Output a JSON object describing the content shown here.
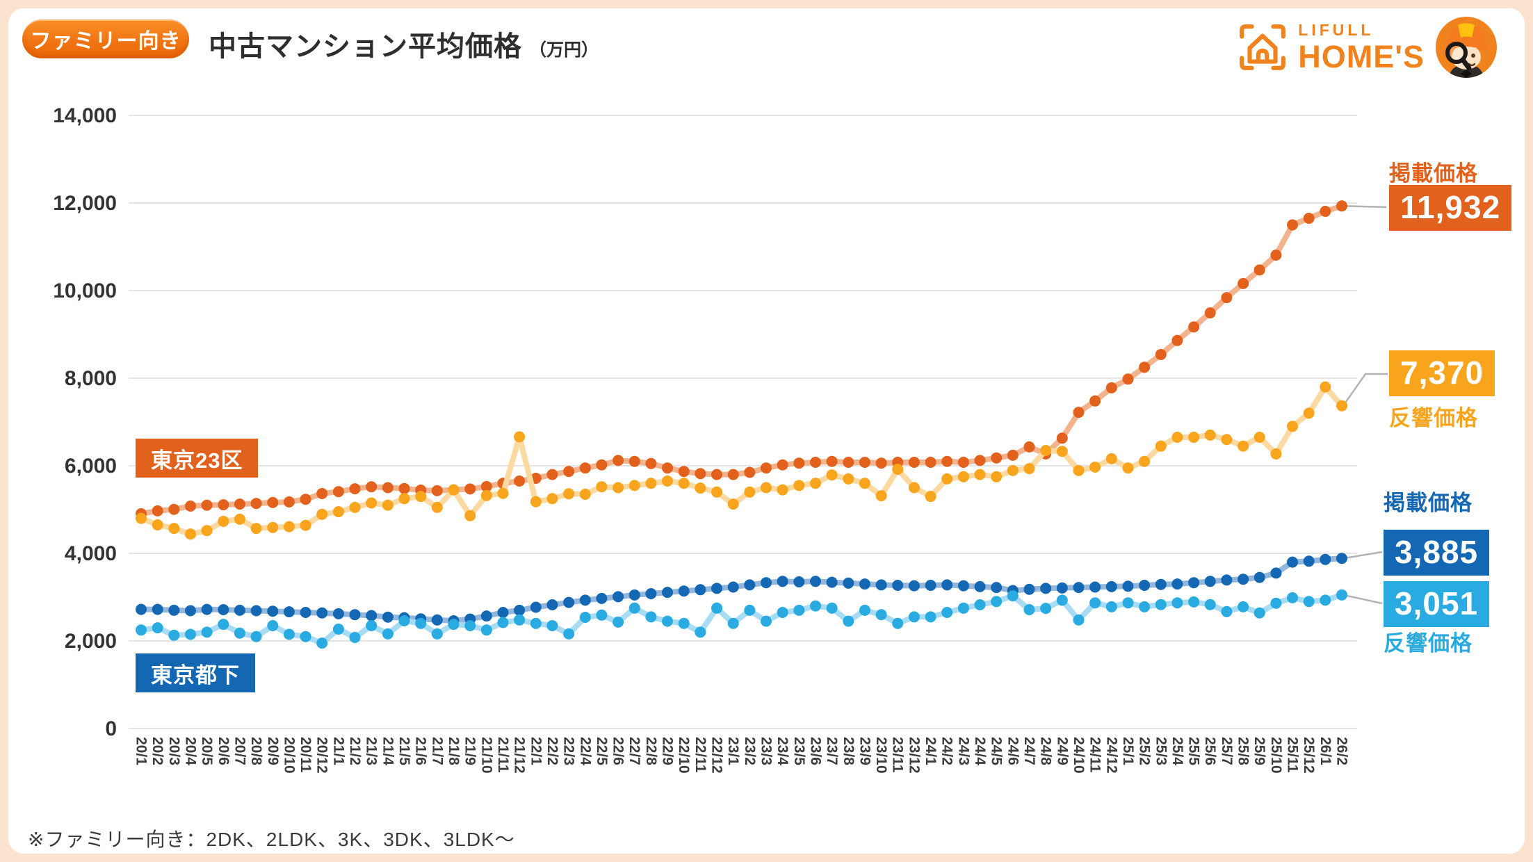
{
  "header": {
    "badge": "ファミリー向き",
    "title": "中古マンション平均価格",
    "title_unit": "（万円）",
    "logo": {
      "brand_top": "LIFULL",
      "brand_bottom": "HOME'S"
    }
  },
  "footer": {
    "note": "※ファミリー向き：2DK、2LDK、3K、3DK、3LDK〜"
  },
  "colors": {
    "brand_orange": "#f0831e",
    "dark_orange": "#e2611c",
    "amber": "#f9a41d",
    "dark_blue": "#1467b3",
    "light_blue": "#29abe2",
    "grid": "#dcdcdc",
    "frame": "#fae3cf",
    "text": "#333333"
  },
  "chart_data": {
    "type": "line",
    "title": "中古マンション平均価格（万円）",
    "unit": "万円",
    "grid": true,
    "ylim": [
      0,
      14000
    ],
    "y_ticks": [
      0,
      2000,
      4000,
      6000,
      8000,
      10000,
      12000,
      14000
    ],
    "x_labels": [
      "20/1",
      "20/2",
      "20/3",
      "20/4",
      "20/5",
      "20/6",
      "20/7",
      "20/8",
      "20/9",
      "20/10",
      "20/11",
      "20/12",
      "21/1",
      "21/2",
      "21/3",
      "21/4",
      "21/5",
      "21/6",
      "21/7",
      "21/8",
      "21/9",
      "21/10",
      "21/11",
      "21/12",
      "22/1",
      "22/2",
      "22/3",
      "22/4",
      "22/5",
      "22/6",
      "22/7",
      "22/8",
      "22/9",
      "22/10",
      "22/11",
      "22/12",
      "23/1",
      "23/2",
      "23/3",
      "23/4",
      "23/5",
      "23/6",
      "23/7",
      "23/8",
      "23/9",
      "23/10",
      "23/11",
      "23/12",
      "24/1",
      "24/2",
      "24/3",
      "24/4",
      "24/5",
      "24/6",
      "24/7",
      "24/8",
      "24/9",
      "24/10",
      "24/11",
      "24/12",
      "25/1",
      "25/2",
      "25/3",
      "25/4",
      "25/5",
      "25/6",
      "25/7",
      "25/8",
      "25/9",
      "25/10",
      "25/11",
      "25/12",
      "26/1",
      "26/2"
    ],
    "series": [
      {
        "id": "tokyo23_listed",
        "group": "東京23区",
        "name": "掲載価格",
        "dot_color": "#e2611c",
        "line_color": "#f2b38d",
        "end_value": 11932,
        "values": [
          4905,
          4970,
          5005,
          5080,
          5100,
          5110,
          5125,
          5140,
          5160,
          5175,
          5235,
          5365,
          5410,
          5475,
          5520,
          5500,
          5480,
          5445,
          5430,
          5450,
          5470,
          5525,
          5600,
          5650,
          5715,
          5800,
          5870,
          5950,
          6020,
          6120,
          6100,
          6050,
          5950,
          5870,
          5820,
          5800,
          5800,
          5850,
          5950,
          6020,
          6060,
          6080,
          6100,
          6080,
          6080,
          6060,
          6080,
          6080,
          6080,
          6100,
          6080,
          6120,
          6180,
          6240,
          6430,
          6270,
          6630,
          7220,
          7480,
          7780,
          7980,
          8250,
          8540,
          8860,
          9170,
          9490,
          9840,
          10160,
          10470,
          10810,
          11500,
          11650,
          11810,
          11932
        ]
      },
      {
        "id": "tokyo23_hankyo",
        "group": "東京23区",
        "name": "反響価格",
        "dot_color": "#f9a41d",
        "line_color": "#fbd9a0",
        "end_value": 7370,
        "values": [
          4800,
          4650,
          4570,
          4440,
          4520,
          4730,
          4780,
          4570,
          4590,
          4610,
          4640,
          4890,
          4950,
          5050,
          5150,
          5100,
          5250,
          5300,
          5050,
          5450,
          4860,
          5320,
          5370,
          6660,
          5180,
          5250,
          5360,
          5350,
          5520,
          5500,
          5550,
          5600,
          5650,
          5600,
          5490,
          5400,
          5125,
          5400,
          5500,
          5450,
          5550,
          5600,
          5790,
          5700,
          5600,
          5315,
          5920,
          5500,
          5300,
          5700,
          5750,
          5800,
          5750,
          5890,
          5935,
          6350,
          6330,
          5890,
          5970,
          6160,
          5950,
          6100,
          6450,
          6650,
          6650,
          6700,
          6600,
          6450,
          6650,
          6270,
          6900,
          7200,
          7800,
          7370
        ]
      },
      {
        "id": "toka_listed",
        "group": "東京都下",
        "name": "掲載価格",
        "dot_color": "#1467b3",
        "line_color": "#93b7dc",
        "end_value": 3885,
        "values": [
          2720,
          2720,
          2700,
          2690,
          2720,
          2715,
          2700,
          2690,
          2680,
          2665,
          2650,
          2640,
          2620,
          2600,
          2580,
          2545,
          2530,
          2505,
          2480,
          2460,
          2500,
          2570,
          2650,
          2700,
          2770,
          2825,
          2880,
          2930,
          2970,
          3010,
          3050,
          3080,
          3110,
          3140,
          3170,
          3200,
          3230,
          3280,
          3330,
          3360,
          3350,
          3360,
          3340,
          3320,
          3300,
          3280,
          3270,
          3260,
          3270,
          3280,
          3260,
          3240,
          3220,
          3150,
          3180,
          3200,
          3210,
          3220,
          3230,
          3240,
          3250,
          3270,
          3290,
          3300,
          3330,
          3360,
          3390,
          3410,
          3450,
          3550,
          3800,
          3820,
          3860,
          3885
        ]
      },
      {
        "id": "toka_hankyo",
        "group": "東京都下",
        "name": "反響価格",
        "dot_color": "#29abe2",
        "line_color": "#a8dcf4",
        "end_value": 3051,
        "values": [
          2250,
          2300,
          2130,
          2150,
          2200,
          2380,
          2180,
          2100,
          2350,
          2150,
          2100,
          1950,
          2270,
          2080,
          2350,
          2160,
          2460,
          2400,
          2160,
          2380,
          2350,
          2250,
          2420,
          2480,
          2400,
          2350,
          2160,
          2540,
          2590,
          2430,
          2750,
          2550,
          2450,
          2400,
          2200,
          2750,
          2400,
          2700,
          2450,
          2650,
          2700,
          2800,
          2750,
          2450,
          2700,
          2600,
          2400,
          2550,
          2550,
          2650,
          2750,
          2825,
          2900,
          3030,
          2715,
          2745,
          2930,
          2480,
          2870,
          2780,
          2870,
          2780,
          2830,
          2870,
          2890,
          2830,
          2670,
          2780,
          2640,
          2860,
          2985,
          2900,
          2930,
          3051
        ]
      }
    ],
    "annotations": {
      "tokyo23_label": "東京23区",
      "toka_label": "東京都下",
      "listed_label": "掲載価格",
      "hankyo_label": "反響価格",
      "end_values": {
        "tokyo23_listed": "11,932",
        "tokyo23_hankyo": "7,370",
        "toka_listed": "3,885",
        "toka_hankyo": "3,051"
      }
    },
    "legend_position": "right-edge-callouts"
  }
}
